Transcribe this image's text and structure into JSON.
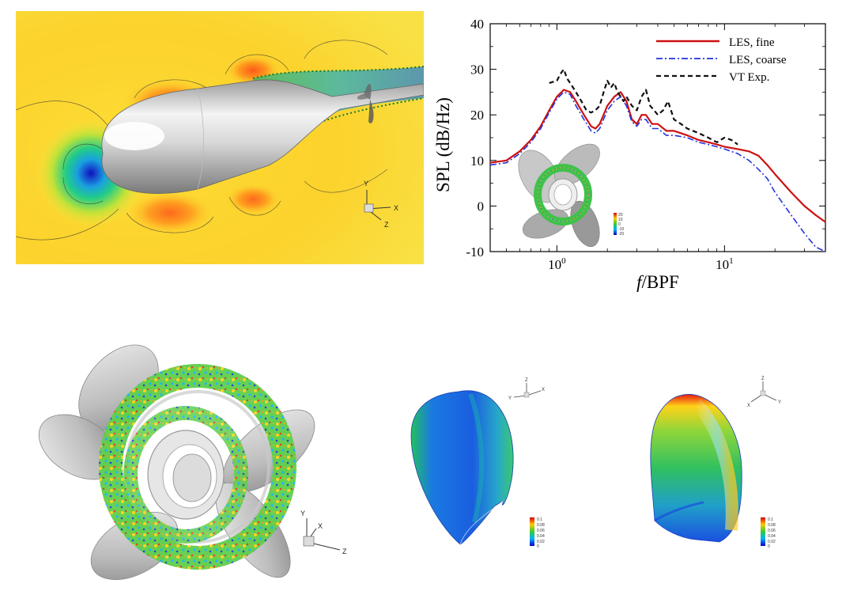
{
  "flow_axes": {
    "y": "Y",
    "x": "X",
    "z": "Z"
  },
  "rotor_axes": {
    "y": "Y",
    "x": "X",
    "z": "Z"
  },
  "blade_left_axes": {
    "z": "Z",
    "y": "Y",
    "x": "X"
  },
  "blade_right_axes": {
    "z": "Z",
    "x": "X",
    "y": "Y"
  },
  "inset_colorbar": {
    "ticks": [
      "20",
      "10",
      "0",
      "-10",
      "-20"
    ]
  },
  "blade_colorbar": {
    "ticks": [
      "0.1",
      "0.08",
      "0.06",
      "0.04",
      "0.02",
      "0"
    ]
  },
  "chart_data": {
    "type": "line",
    "x_scale": "log",
    "xlim": [
      0.4,
      40
    ],
    "ylim": [
      -10,
      40
    ],
    "xlabel_italic": "f",
    "xlabel_rest": "/BPF",
    "ylabel": "SPL (dB/Hz)",
    "x_tick_labels": [
      {
        "base": "10",
        "exp": "0",
        "value": 1
      },
      {
        "base": "10",
        "exp": "1",
        "value": 10
      }
    ],
    "y_ticks": [
      -10,
      0,
      10,
      20,
      30,
      40
    ],
    "legend_position": "top-right",
    "series": [
      {
        "name": "LES, fine",
        "color": "#cc1111",
        "dash": "solid",
        "x": [
          0.4,
          0.5,
          0.6,
          0.7,
          0.8,
          0.9,
          1.0,
          1.1,
          1.2,
          1.3,
          1.45,
          1.6,
          1.7,
          1.8,
          2.0,
          2.2,
          2.4,
          2.6,
          2.8,
          3.0,
          3.2,
          3.4,
          3.7,
          4.0,
          4.5,
          5,
          6,
          7,
          8,
          9,
          10,
          12,
          14,
          16,
          18,
          20,
          25,
          30,
          35,
          40
        ],
        "y": [
          9.5,
          10,
          12,
          14.5,
          17.5,
          21,
          24,
          25.5,
          25,
          23,
          20,
          17.5,
          17,
          18,
          22,
          24,
          25,
          23,
          19,
          18,
          20,
          20,
          18,
          18,
          16.5,
          16.5,
          15.5,
          14.5,
          14,
          13.5,
          13,
          12.5,
          12,
          11,
          9,
          7,
          3,
          0,
          -2,
          -3.5
        ]
      },
      {
        "name": "LES, coarse",
        "color": "#2233dd",
        "dash": "dashdot",
        "x": [
          0.4,
          0.5,
          0.6,
          0.7,
          0.8,
          0.9,
          1.0,
          1.1,
          1.2,
          1.3,
          1.45,
          1.6,
          1.7,
          1.8,
          2.0,
          2.2,
          2.4,
          2.6,
          2.8,
          3.0,
          3.2,
          3.4,
          3.7,
          4.0,
          4.5,
          5,
          6,
          7,
          8,
          9,
          10,
          12,
          14,
          16,
          18,
          20,
          25,
          30,
          35,
          40
        ],
        "y": [
          9,
          9.5,
          11.5,
          14,
          17,
          20.5,
          23.5,
          25,
          24.5,
          22,
          19,
          16.5,
          16,
          17,
          21,
          23,
          24,
          22,
          18.5,
          17.5,
          19,
          19,
          17,
          17,
          15.5,
          15.5,
          15,
          14,
          13.5,
          13,
          12.5,
          11.5,
          10,
          8,
          6,
          3,
          -2,
          -6,
          -9,
          -10
        ]
      },
      {
        "name": "VT Exp.",
        "color": "#111111",
        "dash": "dashed",
        "x": [
          0.9,
          1.0,
          1.05,
          1.1,
          1.15,
          1.2,
          1.3,
          1.4,
          1.5,
          1.6,
          1.7,
          1.8,
          1.9,
          2.0,
          2.1,
          2.2,
          2.3,
          2.4,
          2.5,
          2.6,
          2.8,
          3.0,
          3.2,
          3.4,
          3.6,
          3.8,
          4.0,
          4.3,
          4.6,
          5,
          5.5,
          6,
          7,
          8,
          9,
          10,
          11,
          12
        ],
        "y": [
          27,
          27.5,
          29,
          30,
          28,
          27,
          25,
          23,
          21,
          20.5,
          21,
          22,
          25,
          27.5,
          26,
          27,
          25,
          24,
          23,
          24,
          22,
          21,
          24,
          25.5,
          22,
          21,
          20,
          21,
          23,
          19,
          18,
          17,
          16,
          15,
          14,
          15,
          14.5,
          13.5
        ]
      }
    ]
  }
}
